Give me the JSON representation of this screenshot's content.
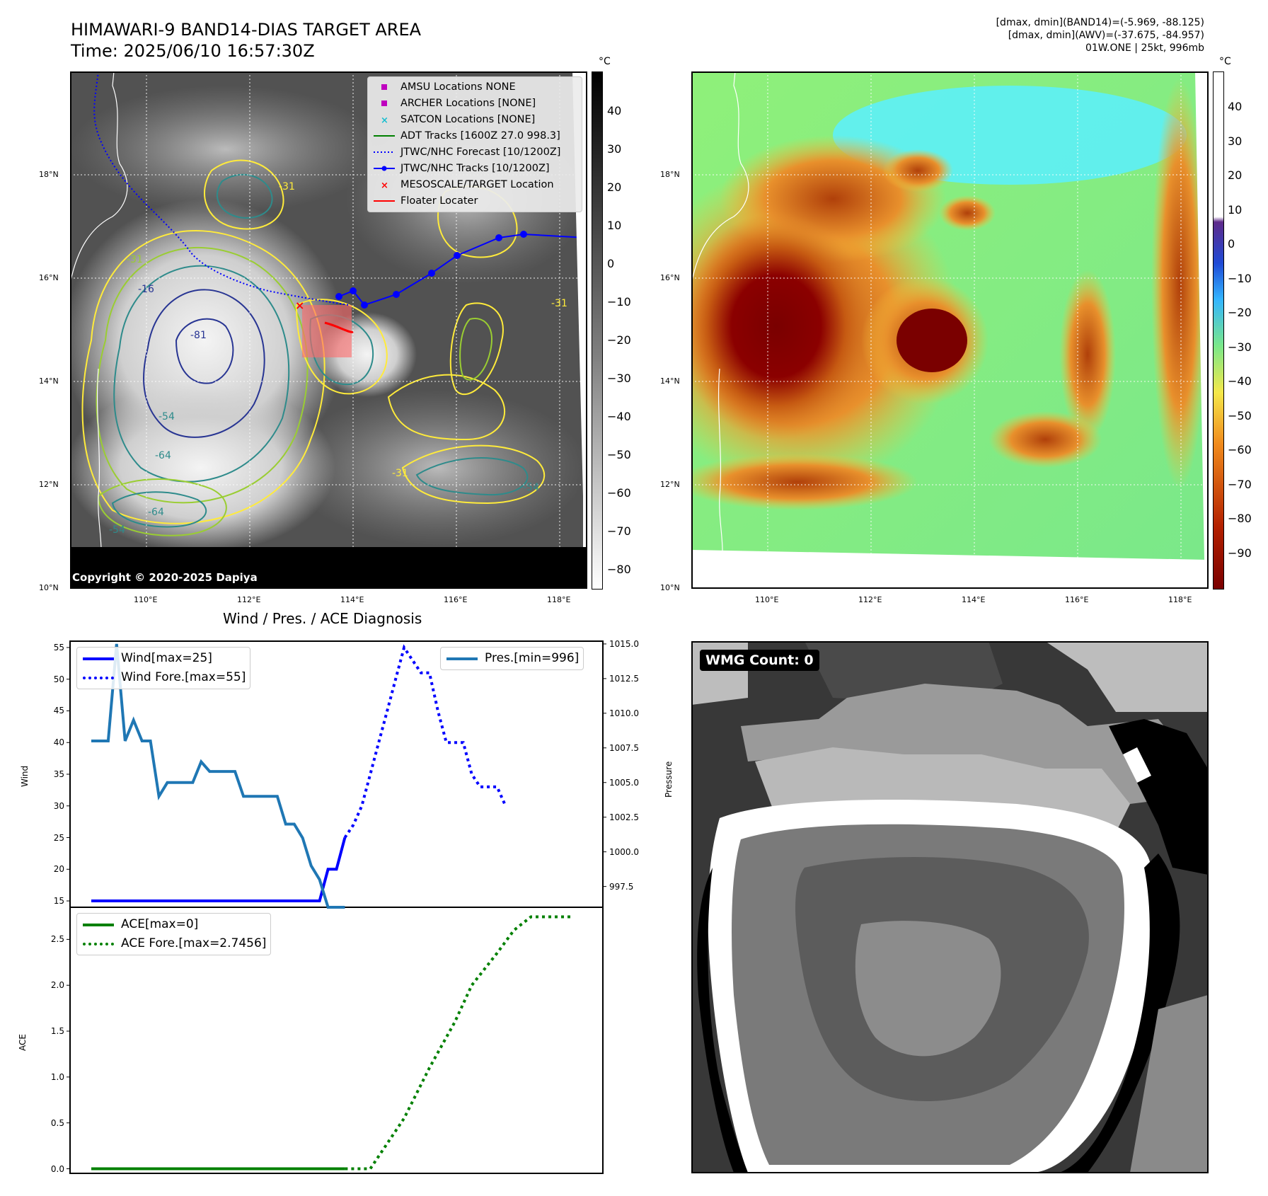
{
  "header": {
    "title_line1": "HIMAWARI-9 BAND14-DIAS TARGET AREA",
    "title_line2": "Time: 2025/06/10 16:57:30Z",
    "info_line1": "[dmax, dmin](BAND14)=(-5.969, -88.125)",
    "info_line2": "[dmax, dmin](AWV)=(-37.675, -84.957)",
    "info_line3": "01W.ONE | 25kt, 996mb"
  },
  "map_axes": {
    "lat_ticks": [
      "18°N",
      "16°N",
      "14°N",
      "12°N",
      "10°N"
    ],
    "lon_ticks": [
      "110°E",
      "112°E",
      "114°E",
      "116°E",
      "118°E"
    ]
  },
  "map_left": {
    "legend": [
      {
        "label": "AMSU Locations NONE",
        "color": "#bf00bf",
        "marker": "square"
      },
      {
        "label": "ARCHER Locations [NONE]",
        "color": "#bf00bf",
        "marker": "square"
      },
      {
        "label": "SATCON Locations [NONE]",
        "color": "#17becf",
        "marker": "x"
      },
      {
        "label": "ADT Tracks [1600Z 27.0 998.3]",
        "color": "#008000",
        "marker": "line"
      },
      {
        "label": "JTWC/NHC Forecast [10/1200Z]",
        "color": "#0000ff",
        "marker": "dotted"
      },
      {
        "label": "JTWC/NHC Tracks [10/1200Z]",
        "color": "#0000ff",
        "marker": "line-dot"
      },
      {
        "label": "MESOSCALE/TARGET Location",
        "color": "#ff0000",
        "marker": "x"
      },
      {
        "label": "Floater Locater",
        "color": "#ff0000",
        "marker": "line"
      }
    ],
    "contour_labels": [
      "-31",
      "-16",
      "-54",
      "-64",
      "-54",
      "-31",
      "-31",
      "-54",
      "-31",
      "-64",
      "-81"
    ],
    "copyright": "Copyright © 2020-2025 Dapiya",
    "colorbar_unit": "°C",
    "colorbar_ticks": [
      "40",
      "30",
      "20",
      "10",
      "0",
      "−10",
      "−20",
      "−30",
      "−40",
      "−50",
      "−60",
      "−70",
      "−80"
    ]
  },
  "map_right": {
    "colorbar_unit": "°C",
    "colorbar_ticks": [
      "40",
      "30",
      "20",
      "10",
      "0",
      "−10",
      "−20",
      "−30",
      "−40",
      "−50",
      "−60",
      "−70",
      "−80",
      "−90"
    ]
  },
  "wmg": {
    "label": "WMG Count: 0"
  },
  "chart_data": [
    {
      "type": "line",
      "title": "Wind / Pres. / ACE Diagnosis",
      "ylabel": "Wind",
      "ylim": [
        14,
        56
      ],
      "yticks": [
        "55",
        "50",
        "45",
        "40",
        "35",
        "30",
        "25",
        "20",
        "15"
      ],
      "x": [
        0,
        1,
        2,
        3,
        4,
        5,
        6,
        7,
        8,
        9,
        10,
        11,
        12,
        13,
        14,
        15,
        16,
        17,
        18,
        19,
        20,
        21,
        22,
        23,
        24,
        25,
        26,
        27,
        28,
        29,
        30,
        31,
        32,
        33,
        34,
        35,
        36,
        37,
        38,
        39,
        40,
        41,
        42,
        43,
        44,
        45,
        46,
        47,
        48,
        49
      ],
      "series": [
        {
          "name": "Wind[max=25]",
          "color": "#0000ff",
          "style": "solid",
          "x": [
            0,
            27,
            28,
            29,
            30
          ],
          "values": [
            15,
            15,
            20,
            20,
            25
          ]
        },
        {
          "name": "Wind Fore.[max=55]",
          "color": "#0000ff",
          "style": "dotted",
          "x": [
            30,
            31,
            32,
            33,
            34,
            35,
            36,
            37,
            38,
            39,
            40,
            41,
            42,
            43,
            44,
            45,
            46,
            47,
            48,
            49
          ],
          "values": [
            25,
            27,
            30,
            35,
            40,
            45,
            50,
            55,
            53,
            51,
            51,
            45,
            40,
            40,
            40,
            35,
            33,
            33,
            33,
            30
          ]
        }
      ],
      "secondary": {
        "ylabel": "Pressure",
        "ylim": [
          996,
          1015.2
        ],
        "yticks": [
          "1015.0",
          "1012.5",
          "1010.0",
          "1007.5",
          "1005.0",
          "1002.5",
          "1000.0",
          "997.5"
        ],
        "series": [
          {
            "name": "Pres.[min=996]",
            "color": "#1f77b4",
            "style": "solid",
            "x": [
              0,
              1,
              2,
              3,
              4,
              5,
              6,
              7,
              8,
              9,
              10,
              11,
              12,
              13,
              14,
              15,
              16,
              17,
              18,
              19,
              20,
              21,
              22,
              23,
              24,
              25,
              26,
              27,
              28,
              29,
              30
            ],
            "values": [
              1008,
              1008,
              1008,
              1015,
              1008,
              1009.5,
              1008,
              1008,
              1004,
              1005,
              1005,
              1005,
              1005,
              1006.5,
              1005.8,
              1005.8,
              1005.8,
              1005.8,
              1004,
              1004,
              1004,
              1004,
              1004,
              1002,
              1002,
              1001,
              999,
              998,
              996,
              996,
              996
            ]
          }
        ]
      }
    },
    {
      "type": "line",
      "ylabel": "ACE",
      "ylim": [
        -0.05,
        2.85
      ],
      "yticks": [
        "2.5",
        "2.0",
        "1.5",
        "1.0",
        "0.5",
        "0.0"
      ],
      "series": [
        {
          "name": "ACE[max=0]",
          "color": "#008000",
          "style": "solid",
          "x": [
            0,
            30
          ],
          "values": [
            0,
            0
          ]
        },
        {
          "name": "ACE Fore.[max=2.7456]",
          "color": "#008000",
          "style": "dotted",
          "x": [
            30,
            33,
            37,
            40,
            43,
            45,
            48,
            50,
            52,
            54,
            57
          ],
          "values": [
            0,
            0,
            0.55,
            1.1,
            1.6,
            2.0,
            2.35,
            2.6,
            2.7456,
            2.7456,
            2.7456
          ]
        }
      ]
    }
  ]
}
